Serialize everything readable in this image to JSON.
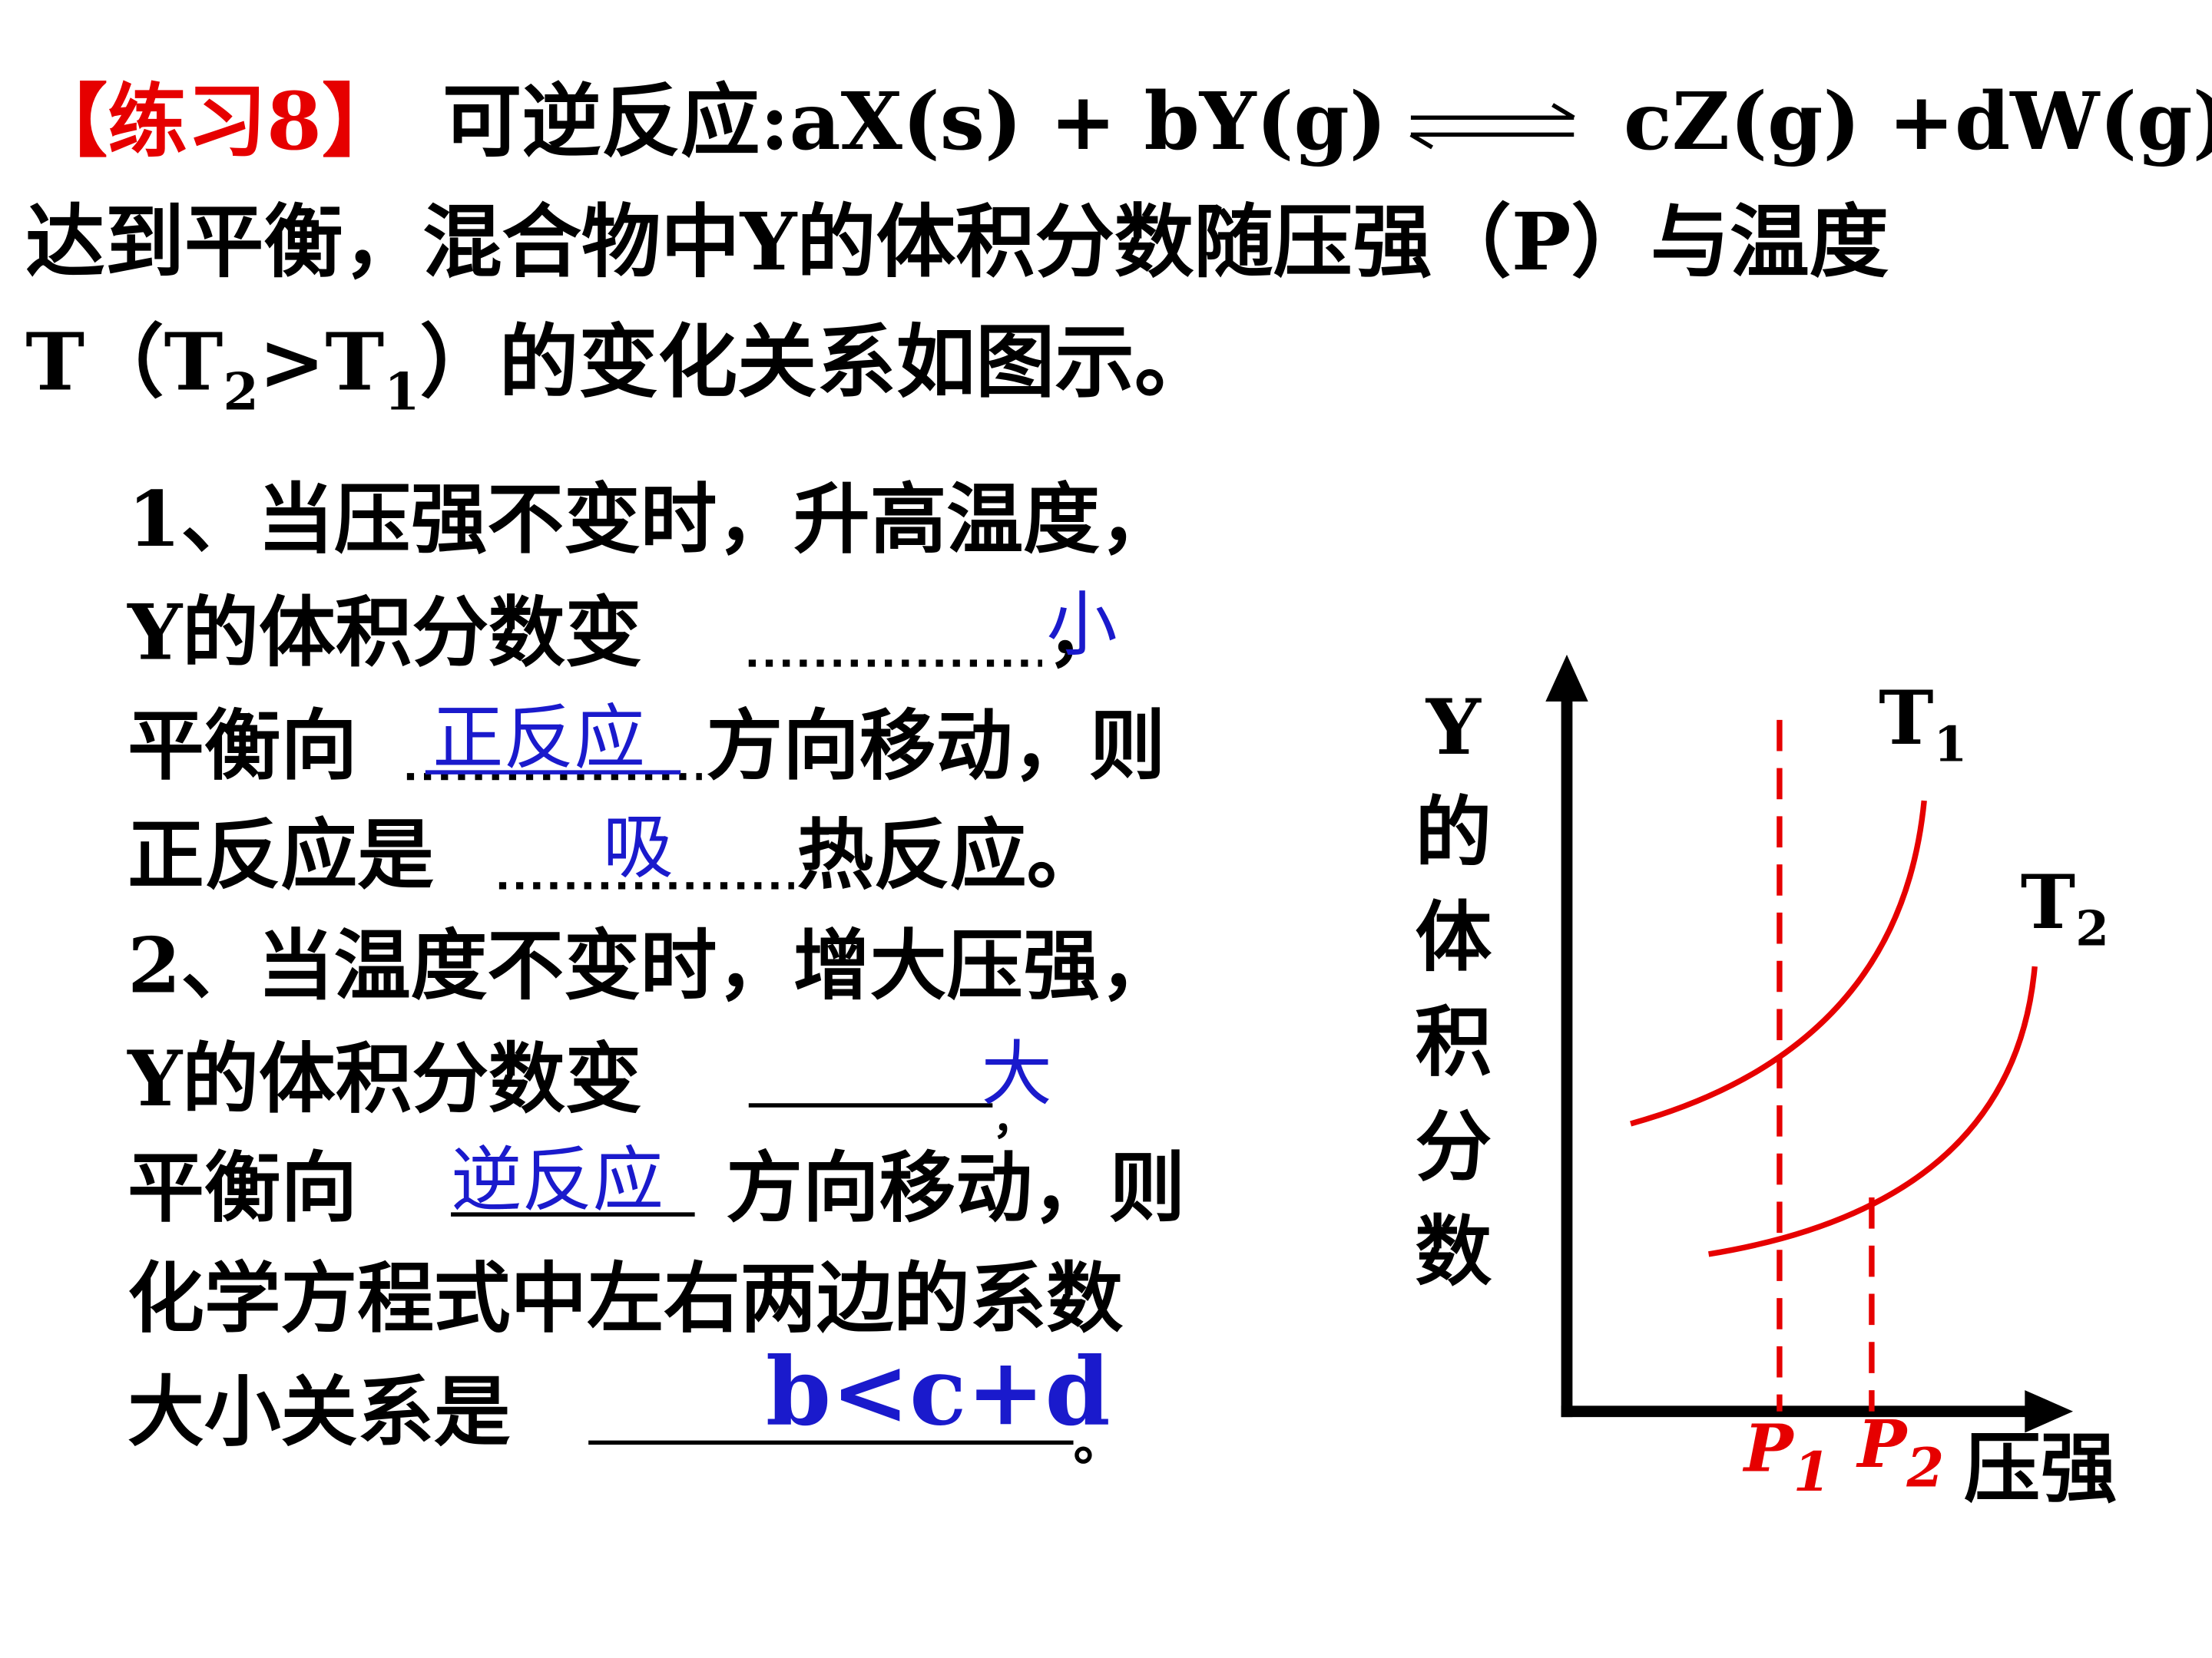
{
  "header": {
    "tag": "【练习8】",
    "reaction_left": "可逆反应:aX(s) + bY(g)",
    "reaction_right": "cZ(g) +dW(g)"
  },
  "intro": {
    "line2": "达到平衡，混合物中Y的体积分数随压强（P）与温度",
    "line3": [
      "T（T",
      "2",
      ">T",
      "1",
      "）的变化关系如图示。"
    ]
  },
  "question1": {
    "line1": "1、当压强不变时，升高温度，",
    "line2": [
      "Y的体积分数变",
      "，"
    ],
    "answer1": "小",
    "line3": [
      "平衡向",
      "方向移动，则"
    ],
    "answer2": "正反应",
    "line4": [
      "正反应是",
      "热反应。"
    ],
    "answer3": "吸"
  },
  "question2": {
    "line1": "2、当温度不变时，增大压强，",
    "line2": [
      "Y的体积分数变",
      "，"
    ],
    "answer1": "大",
    "line3": [
      "平衡向",
      "方向移动，则"
    ],
    "answer2": "逆反应",
    "line4": "化学方程式中左右两边的系数",
    "line5": [
      "大小关系是",
      "。"
    ],
    "answer3": "b<c+d"
  },
  "graph": {
    "y_label": [
      "Y",
      "的",
      "体",
      "积",
      "分",
      "数"
    ],
    "x_label": "压强",
    "curves": [
      {
        "label": "T",
        "subscript": "1"
      },
      {
        "label": "T",
        "subscript": "2"
      }
    ],
    "markers": [
      {
        "label": "P",
        "subscript": "1"
      },
      {
        "label": "P",
        "subscript": "2"
      }
    ]
  }
}
